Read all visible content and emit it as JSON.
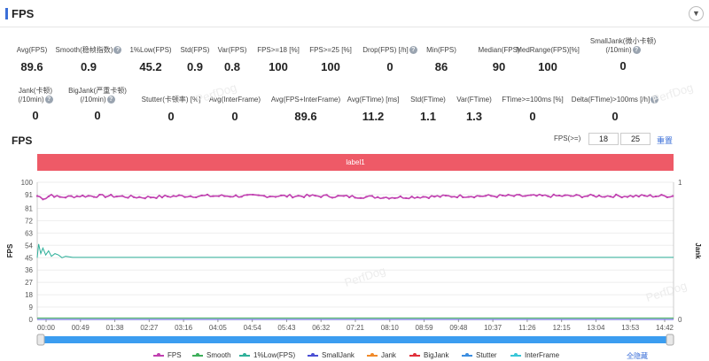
{
  "header": {
    "title": "FPS",
    "collapse_icon": "chevron-down-icon"
  },
  "stats_row1": [
    {
      "label": "Avg(FPS)",
      "value": "89.6",
      "help": false
    },
    {
      "label": "Smooth(稳帧指数)",
      "value": "0.9",
      "help": true
    },
    {
      "label": "1%Low(FPS)",
      "value": "45.2",
      "help": false
    },
    {
      "label": "Std(FPS)",
      "value": "0.9",
      "help": false
    },
    {
      "label": "Var(FPS)",
      "value": "0.8",
      "help": false
    },
    {
      "label": "FPS>=18 [%]",
      "value": "100",
      "help": false
    },
    {
      "label": "FPS>=25 [%]",
      "value": "100",
      "help": false
    },
    {
      "label": "Drop(FPS) [/h]",
      "value": "0",
      "help": true
    },
    {
      "label": "Min(FPS)",
      "value": "86",
      "help": false
    },
    {
      "label": "Median(FPS)",
      "value": "90",
      "help": false
    },
    {
      "label": "MedRange(FPS)[%]",
      "value": "100",
      "help": false
    },
    {
      "label": "SmallJank(微小卡顿)",
      "label2": "(/10min)",
      "value": "0",
      "help": true
    }
  ],
  "stats_row2": [
    {
      "label": "Jank(卡顿)",
      "label2": "(/10min)",
      "value": "0",
      "help": true
    },
    {
      "label": "BigJank(严重卡顿)",
      "label2": "(/10min)",
      "value": "0",
      "help": true
    },
    {
      "label": "Stutter(卡顿率) [%]",
      "value": "0",
      "help": false
    },
    {
      "label": "Avg(InterFrame)",
      "value": "0",
      "help": false
    },
    {
      "label": "Avg(FPS+InterFrame)",
      "value": "89.6",
      "help": false
    },
    {
      "label": "Avg(FTime) [ms]",
      "value": "11.2",
      "help": false
    },
    {
      "label": "Std(FTime)",
      "value": "1.1",
      "help": false
    },
    {
      "label": "Var(FTime)",
      "value": "1.3",
      "help": false
    },
    {
      "label": "FTime>=100ms [%]",
      "value": "0",
      "help": false
    },
    {
      "label": "Delta(FTime)>100ms [/h]",
      "value": "0",
      "help": true
    }
  ],
  "watermark": "PerfDog",
  "chart_section": {
    "title": "FPS",
    "fps_setting_label": "FPS(>=)",
    "fps_threshold_1": "18",
    "fps_threshold_2": "25",
    "reset_label": "重置",
    "band_label": "label1",
    "hide_all_label": "全隐藏"
  },
  "chart_data": {
    "type": "line",
    "ylabel": "FPS",
    "y2label": "Jank",
    "ylim": [
      0,
      100
    ],
    "y2lim": [
      0,
      1
    ],
    "yticks": [
      0,
      9,
      18,
      27,
      36,
      45,
      54,
      63,
      72,
      81,
      91,
      100
    ],
    "y2ticks": [
      0,
      1
    ],
    "xticks": [
      "00:00",
      "00:49",
      "01:38",
      "02:27",
      "03:16",
      "04:05",
      "04:54",
      "05:43",
      "06:32",
      "07:21",
      "08:10",
      "08:59",
      "09:48",
      "10:37",
      "11:26",
      "12:15",
      "13:04",
      "13:53",
      "14:42"
    ],
    "x_range_seconds": [
      0,
      897
    ],
    "series": [
      {
        "name": "FPS",
        "color": "#c040b0",
        "marker": true,
        "points": [
          [
            0,
            90
          ],
          [
            10,
            88
          ],
          [
            20,
            91
          ],
          [
            30,
            89
          ],
          [
            60,
            90
          ],
          [
            100,
            90
          ],
          [
            150,
            89
          ],
          [
            200,
            90
          ],
          [
            300,
            90
          ],
          [
            400,
            90
          ],
          [
            500,
            89
          ],
          [
            600,
            90
          ],
          [
            700,
            90
          ],
          [
            800,
            90
          ],
          [
            897,
            90
          ]
        ]
      },
      {
        "name": "Smooth",
        "color": "#3dae5a",
        "points": [
          [
            0,
            1
          ],
          [
            897,
            1
          ]
        ]
      },
      {
        "name": "1%Low(FPS)",
        "color": "#2fb09a",
        "points": [
          [
            0,
            45
          ],
          [
            2,
            55
          ],
          [
            5,
            48
          ],
          [
            8,
            52
          ],
          [
            12,
            47
          ],
          [
            16,
            50
          ],
          [
            20,
            46
          ],
          [
            25,
            48
          ],
          [
            30,
            47
          ],
          [
            35,
            45
          ],
          [
            40,
            46
          ],
          [
            50,
            45.2
          ],
          [
            897,
            45.2
          ]
        ]
      },
      {
        "name": "SmallJank",
        "color": "#4b4fd4",
        "points": [
          [
            0,
            0
          ],
          [
            897,
            0
          ]
        ]
      },
      {
        "name": "Jank",
        "color": "#f08a2a",
        "points": [
          [
            0,
            0
          ],
          [
            897,
            0
          ]
        ]
      },
      {
        "name": "BigJank",
        "color": "#e0303a",
        "points": [
          [
            0,
            0
          ],
          [
            897,
            0
          ]
        ]
      },
      {
        "name": "Stutter",
        "color": "#3b8de0",
        "points": [
          [
            0,
            0
          ],
          [
            897,
            0
          ]
        ]
      },
      {
        "name": "InterFrame",
        "color": "#38c6d8",
        "points": [
          [
            0,
            0
          ],
          [
            897,
            0
          ]
        ]
      }
    ],
    "legend_position": "bottom",
    "grid": true
  }
}
